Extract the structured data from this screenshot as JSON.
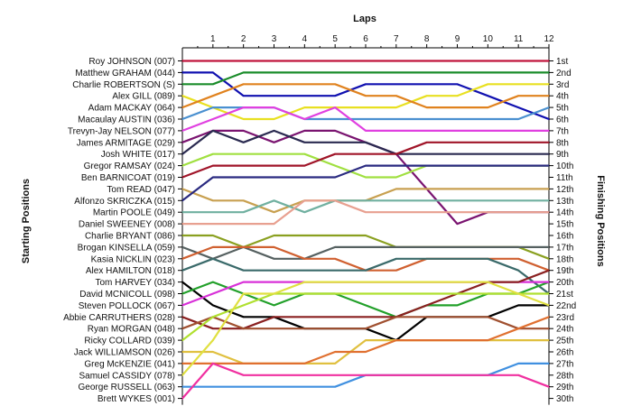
{
  "chart_data": {
    "type": "line",
    "title": "",
    "top_axis_label": "Laps",
    "left_axis_label": "Starting Positions",
    "right_axis_label": "Finishing Positions",
    "x": [
      0,
      1,
      2,
      3,
      4,
      5,
      6,
      7,
      8,
      9,
      10,
      11,
      12
    ],
    "x_tick_labels": [
      "1",
      "2",
      "3",
      "4",
      "5",
      "6",
      "7",
      "8",
      "9",
      "10",
      "11",
      "12"
    ],
    "y_direction": "position 1 at top",
    "grid": false,
    "drivers": [
      "Roy JOHNSON (007)",
      "Matthew GRAHAM (044)",
      "Charlie ROBERTSON (S)",
      "Alex GILL (089)",
      "Adam MACKAY (064)",
      "Macaulay AUSTIN (036)",
      "Trevyn-Jay NELSON (077)",
      "James ARMITAGE (029)",
      "Josh WHITE (017)",
      "Gregor RAMSAY (024)",
      "Ben BARNICOAT (019)",
      "Tom READ (047)",
      "Alfonzo SKRICZKA (015)",
      "Martin POOLE (049)",
      "Daniel SWEENEY (008)",
      "Charlie BRYANT (086)",
      "Brogan KINSELLA (059)",
      "Kasia NICKLIN (023)",
      "Alex HAMILTON (018)",
      "Tom HARVEY (034)",
      "David MCNICOLL (098)",
      "Steven POLLOCK (067)",
      "Abbie CARRUTHERS (028)",
      "Ryan MORGAN (048)",
      "Ricky COLLARD (039)",
      "Jack WILLIAMSON (026)",
      "Greg McKENZIE (041)",
      "Samuel CASSIDY (078)",
      "George RUSSELL (063)",
      "Brett WYKES (001)"
    ],
    "finishing_labels": [
      "1st",
      "2nd",
      "3rd",
      "4th",
      "5th",
      "6th",
      "7th",
      "8th",
      "9th",
      "10th",
      "11th",
      "12th",
      "13th",
      "14th",
      "15th",
      "16th",
      "17th",
      "18th",
      "19th",
      "20th",
      "21st",
      "22nd",
      "23rd",
      "24th",
      "25th",
      "26th",
      "27th",
      "28th",
      "29th",
      "30th"
    ],
    "series": [
      {
        "values": [
          1,
          1,
          1,
          1,
          1,
          1,
          1,
          1,
          1,
          1,
          1,
          1,
          1
        ],
        "color": "#c0143c"
      },
      {
        "values": [
          2,
          2,
          4,
          4,
          4,
          4,
          3,
          3,
          3,
          3,
          4,
          5,
          6
        ],
        "color": "#1010b0"
      },
      {
        "values": [
          3,
          3,
          2,
          2,
          2,
          2,
          2,
          2,
          2,
          2,
          2,
          2,
          2
        ],
        "color": "#1a8c2a"
      },
      {
        "values": [
          4,
          5,
          6,
          6,
          5,
          5,
          5,
          5,
          4,
          4,
          3,
          3,
          3
        ],
        "color": "#e8e020"
      },
      {
        "values": [
          5,
          4,
          3,
          3,
          3,
          3,
          4,
          4,
          5,
          5,
          5,
          4,
          4
        ],
        "color": "#e0821e"
      },
      {
        "values": [
          6,
          5,
          5,
          5,
          6,
          6,
          6,
          6,
          6,
          6,
          6,
          6,
          5
        ],
        "color": "#4a90d0"
      },
      {
        "values": [
          7,
          6,
          5,
          5,
          6,
          5,
          7,
          7,
          7,
          7,
          7,
          7,
          7
        ],
        "color": "#e040e0"
      },
      {
        "values": [
          8,
          7,
          7,
          8,
          7,
          7,
          8,
          9,
          12,
          15,
          14,
          14,
          14
        ],
        "color": "#7a1470"
      },
      {
        "values": [
          9,
          7,
          8,
          7,
          8,
          8,
          8,
          9,
          9,
          9,
          9,
          9,
          9
        ],
        "color": "#2a2a50"
      },
      {
        "values": [
          10,
          9,
          9,
          9,
          9,
          10,
          11,
          11,
          10,
          10,
          10,
          10,
          10
        ],
        "color": "#a0e040"
      },
      {
        "values": [
          11,
          10,
          10,
          10,
          10,
          9,
          9,
          9,
          8,
          8,
          8,
          8,
          8
        ],
        "color": "#a01428"
      },
      {
        "values": [
          12,
          13,
          13,
          14,
          13,
          13,
          13,
          12,
          12,
          12,
          12,
          12,
          12
        ],
        "color": "#c8a050"
      },
      {
        "values": [
          13,
          11,
          11,
          11,
          11,
          11,
          10,
          10,
          10,
          10,
          10,
          10,
          10
        ],
        "color": "#2a2a80"
      },
      {
        "values": [
          14,
          14,
          14,
          13,
          14,
          13,
          13,
          13,
          13,
          13,
          13,
          13,
          13
        ],
        "color": "#70b0a0"
      },
      {
        "values": [
          15,
          15,
          15,
          15,
          13,
          13,
          14,
          14,
          14,
          14,
          14,
          14,
          14
        ],
        "color": "#e8a090"
      },
      {
        "values": [
          16,
          16,
          17,
          16,
          16,
          16,
          16,
          17,
          17,
          17,
          17,
          17,
          18
        ],
        "color": "#8aa020"
      },
      {
        "values": [
          17,
          18,
          17,
          18,
          18,
          17,
          17,
          17,
          17,
          17,
          17,
          17,
          17
        ],
        "color": "#556060"
      },
      {
        "values": [
          18,
          17,
          17,
          17,
          18,
          18,
          19,
          19,
          18,
          18,
          18,
          18,
          19
        ],
        "color": "#d06030"
      },
      {
        "values": [
          19,
          18,
          19,
          19,
          19,
          19,
          19,
          18,
          18,
          18,
          18,
          19,
          21
        ],
        "color": "#3a6a6a"
      },
      {
        "values": [
          20,
          22,
          23,
          23,
          24,
          24,
          24,
          25,
          23,
          23,
          23,
          22,
          22
        ],
        "color": "#000000"
      },
      {
        "values": [
          21,
          20,
          21,
          22,
          21,
          21,
          22,
          23,
          22,
          22,
          21,
          21,
          20
        ],
        "color": "#22a02a"
      },
      {
        "values": [
          22,
          21,
          20,
          20,
          20,
          20,
          20,
          20,
          20,
          20,
          20,
          20,
          20
        ],
        "color": "#d830d8"
      },
      {
        "values": [
          23,
          24,
          24,
          23,
          23,
          23,
          23,
          23,
          22,
          21,
          20,
          20,
          19
        ],
        "color": "#8a2020"
      },
      {
        "values": [
          24,
          23,
          24,
          24,
          24,
          24,
          24,
          23,
          23,
          23,
          23,
          24,
          24
        ],
        "color": "#a05030"
      },
      {
        "values": [
          25,
          23,
          22,
          21,
          21,
          21,
          21,
          21,
          21,
          21,
          21,
          21,
          21
        ],
        "color": "#b0e030"
      },
      {
        "values": [
          26,
          26,
          27,
          27,
          27,
          27,
          25,
          25,
          25,
          25,
          25,
          25,
          25
        ],
        "color": "#e0c040"
      },
      {
        "values": [
          27,
          27,
          27,
          27,
          27,
          26,
          26,
          25,
          25,
          25,
          25,
          24,
          23
        ],
        "color": "#e07030"
      },
      {
        "values": [
          28,
          25,
          21,
          21,
          20,
          20,
          20,
          20,
          20,
          20,
          20,
          21,
          22
        ],
        "color": "#e0e040"
      },
      {
        "values": [
          29,
          29,
          29,
          29,
          29,
          29,
          28,
          28,
          28,
          28,
          28,
          27,
          27
        ],
        "color": "#4090e0"
      },
      {
        "values": [
          30,
          27,
          28,
          28,
          28,
          28,
          28,
          28,
          28,
          28,
          28,
          28,
          29
        ],
        "color": "#f030a0"
      }
    ]
  }
}
